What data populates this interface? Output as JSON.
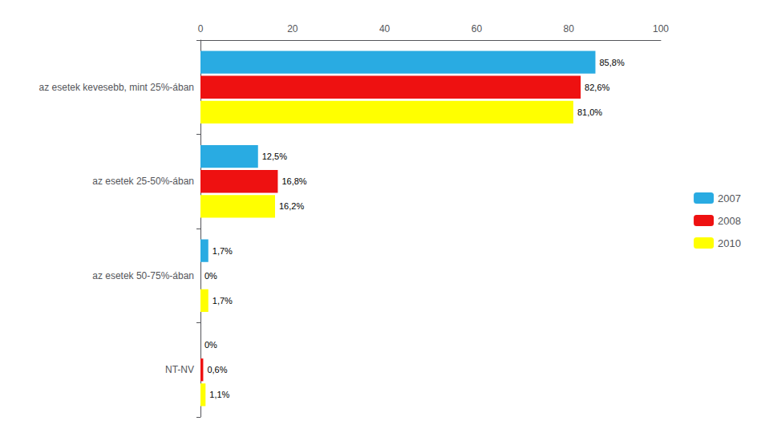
{
  "chart_data": {
    "type": "bar",
    "orientation": "horizontal",
    "categories": [
      "az esetek kevesebb, mint 25%-ában",
      "az esetek 25-50%-ában",
      "az esetek 50-75%-ában",
      "NT-NV"
    ],
    "series": [
      {
        "name": "2007",
        "color": "#29ABE2",
        "values": [
          85.8,
          12.5,
          1.7,
          0.0
        ],
        "value_labels": [
          "85,8%",
          "12,5%",
          "1,7%",
          "0%"
        ]
      },
      {
        "name": "2008",
        "color": "#EE1111",
        "values": [
          82.6,
          16.8,
          0.0,
          0.6
        ],
        "value_labels": [
          "82,6%",
          "16,8%",
          "0%",
          "0,6%"
        ]
      },
      {
        "name": "2010",
        "color": "#FFFF00",
        "values": [
          81.0,
          16.2,
          1.7,
          1.1
        ],
        "value_labels": [
          "81,0%",
          "16,2%",
          "1,7%",
          "1,1%"
        ]
      }
    ],
    "xlim": [
      0,
      100
    ],
    "xticks": [
      0,
      20,
      40,
      60,
      80,
      100
    ],
    "data_labels": true,
    "legend": "right",
    "grid": false
  }
}
